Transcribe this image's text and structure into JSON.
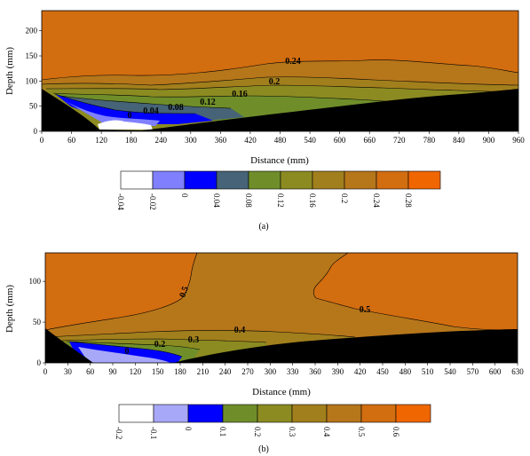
{
  "chart_data": [
    {
      "type": "heatmap",
      "caption": "(a)",
      "xlabel": "Distance (mm)",
      "ylabel": "Depth (mm)",
      "xlim": [
        0,
        960
      ],
      "ylim": [
        0,
        240
      ],
      "x_ticks": [
        "0",
        "60",
        "120",
        "180",
        "240",
        "300",
        "360",
        "420",
        "480",
        "540",
        "600",
        "660",
        "720",
        "780",
        "840",
        "900",
        "960"
      ],
      "y_ticks": [
        "0",
        "50",
        "100",
        "150",
        "200"
      ],
      "contour_labels": [
        "0",
        "0.04",
        "0.08",
        "0.12",
        "0.16",
        "0.2",
        "0.24"
      ],
      "legend": {
        "levels": [
          "-0.04",
          "-0.02",
          "0",
          "0.04",
          "0.08",
          "0.12",
          "0.16",
          "0.2",
          "0.24",
          "0.28"
        ],
        "colors": [
          "#ffffff",
          "#8080ff",
          "#0000ff",
          "#466377",
          "#6f8e2a",
          "#8c8b21",
          "#a27f1d",
          "#b6761a",
          "#d26d10",
          "#f06600"
        ]
      }
    },
    {
      "type": "heatmap",
      "caption": "(b)",
      "xlabel": "Distance (mm)",
      "ylabel": "Depth (mm)",
      "xlim": [
        0,
        630
      ],
      "ylim": [
        0,
        135
      ],
      "x_ticks": [
        "0",
        "30",
        "60",
        "90",
        "120",
        "150",
        "180",
        "210",
        "240",
        "270",
        "300",
        "330",
        "360",
        "390",
        "420",
        "450",
        "480",
        "510",
        "540",
        "570",
        "600",
        "630"
      ],
      "y_ticks": [
        "0",
        "50",
        "100"
      ],
      "contour_labels": [
        "0",
        "0.2",
        "0.3",
        "0.4",
        "0.5",
        "0.5"
      ],
      "legend": {
        "levels": [
          "-0.2",
          "-0.1",
          "0",
          "0.1",
          "0.2",
          "0.3",
          "0.4",
          "0.5",
          "0.6"
        ],
        "colors": [
          "#ffffff",
          "#a8a8f8",
          "#0000ff",
          "#6f8e2a",
          "#8c8b21",
          "#a27f1d",
          "#b6761a",
          "#d26d10",
          "#f06600"
        ]
      }
    }
  ]
}
